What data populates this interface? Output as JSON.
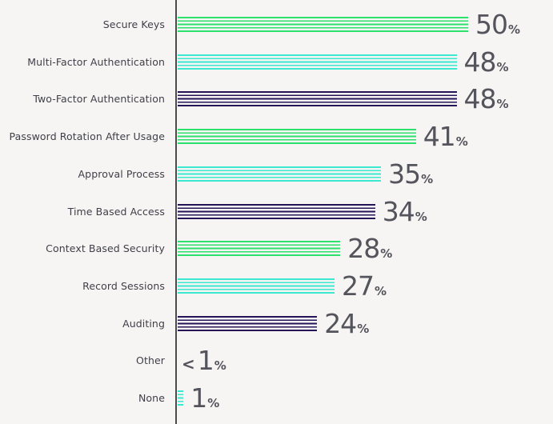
{
  "chart_data": {
    "type": "bar",
    "orientation": "horizontal",
    "title": "",
    "xlabel": "",
    "ylabel": "",
    "xlim": [
      0,
      50
    ],
    "grid": false,
    "legend": false,
    "unit": "%",
    "categories": [
      "Secure Keys",
      "Multi-Factor Authentication",
      "Two-Factor Authentication",
      "Password Rotation After Usage",
      "Approval Process",
      "Time Based Access",
      "Context Based Security",
      "Record Sessions",
      "Auditing",
      "Other",
      "None"
    ],
    "values": [
      50,
      48,
      48,
      41,
      35,
      34,
      28,
      27,
      24,
      0.5,
      1
    ],
    "display_values": [
      "50%",
      "48%",
      "48%",
      "41%",
      "35%",
      "34%",
      "28%",
      "27%",
      "24%",
      "<1%",
      "1%"
    ],
    "value_numbers": [
      "50",
      "48",
      "48",
      "41",
      "35",
      "34",
      "28",
      "27",
      "24",
      "1",
      "1"
    ],
    "value_prefixes": [
      "",
      "",
      "",
      "",
      "",
      "",
      "",
      "",
      "",
      "<",
      ""
    ],
    "bar_lengths_pct": [
      50,
      48,
      48,
      41,
      35,
      34,
      28,
      27,
      24,
      0,
      1
    ],
    "bar_color_names": [
      "green",
      "teal",
      "navy",
      "green",
      "teal",
      "navy",
      "green",
      "teal",
      "navy",
      "green",
      "teal"
    ],
    "palette": {
      "green": "#2ce16b",
      "teal": "#3ae9cf",
      "navy": "#251257"
    },
    "style": {
      "background": "#f6f5f3",
      "axis_color": "#4b4b4b",
      "label_color": "#3f3f49",
      "value_color": "#54545c"
    }
  }
}
